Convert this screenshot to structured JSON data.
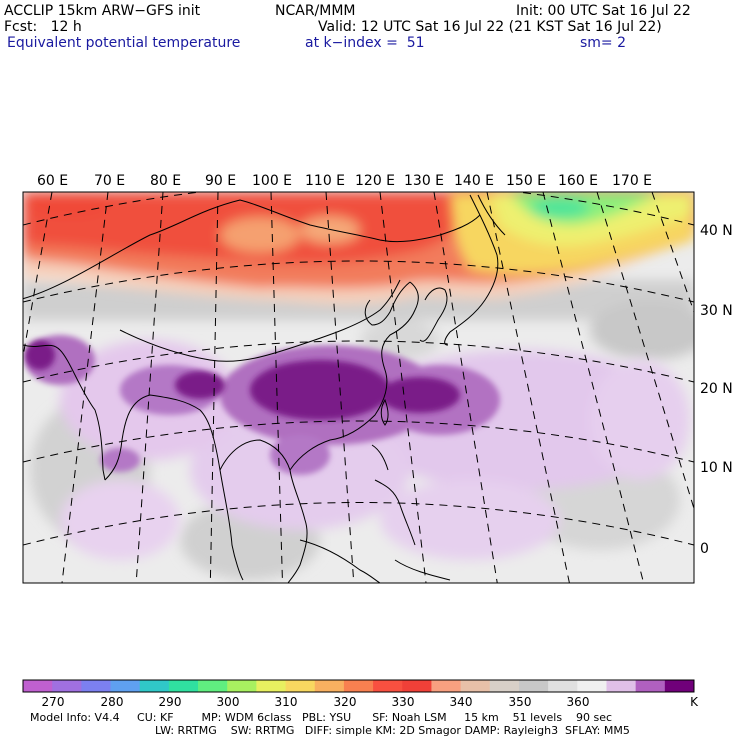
{
  "header": {
    "line1_left": "ACCLIP 15km ARW−GFS init",
    "line1_center": "NCAR/MMM",
    "line1_right": "Init: 00 UTC Sat 16 Jul 22",
    "line2_left": "Fcst:   12 h",
    "line2_right": "Valid: 12 UTC Sat 16 Jul 22 (21 KST Sat 16 Jul 22)",
    "field_name": "Equivalent potential temperature",
    "level": "at k−index =  51",
    "smoothing": "sm= 2"
  },
  "map": {
    "lon_labels": [
      "60 E",
      "70 E",
      "80 E",
      "90 E",
      "100 E",
      "110 E",
      "120 E",
      "130 E",
      "140 E",
      "150 E",
      "160 E",
      "170 E"
    ],
    "lat_labels": [
      "40 N",
      "30 N",
      "20 N",
      "10 N",
      "0"
    ]
  },
  "colorbar": {
    "colors": [
      "#c060d0",
      "#a070e0",
      "#7c80f0",
      "#5fa0f0",
      "#30c8c8",
      "#30e0a0",
      "#60ee80",
      "#a8f060",
      "#e8f060",
      "#f8d860",
      "#f8b060",
      "#f88050",
      "#f85040",
      "#f04038",
      "#f8a080",
      "#e8c0a8",
      "#d8d0c8",
      "#c8c8c8",
      "#e0e0e0",
      "#f0f0f0",
      "#e0c0e8",
      "#b060c0",
      "#70007a"
    ],
    "tick_labels": [
      "270",
      "280",
      "290",
      "300",
      "310",
      "320",
      "330",
      "340",
      "350",
      "360"
    ],
    "unit": "K"
  },
  "footer": {
    "line1": "Model Info: V4.4     CU: KF        MP: WDM 6class   PBL: YSU      SF: Noah LSM     15 km    51 levels    90 sec",
    "line2": "LW: RRTMG    SW: RRTMG   DIFF: simple KM: 2D Smagor DAMP: Rayleigh3  SFLAY: MM5"
  }
}
